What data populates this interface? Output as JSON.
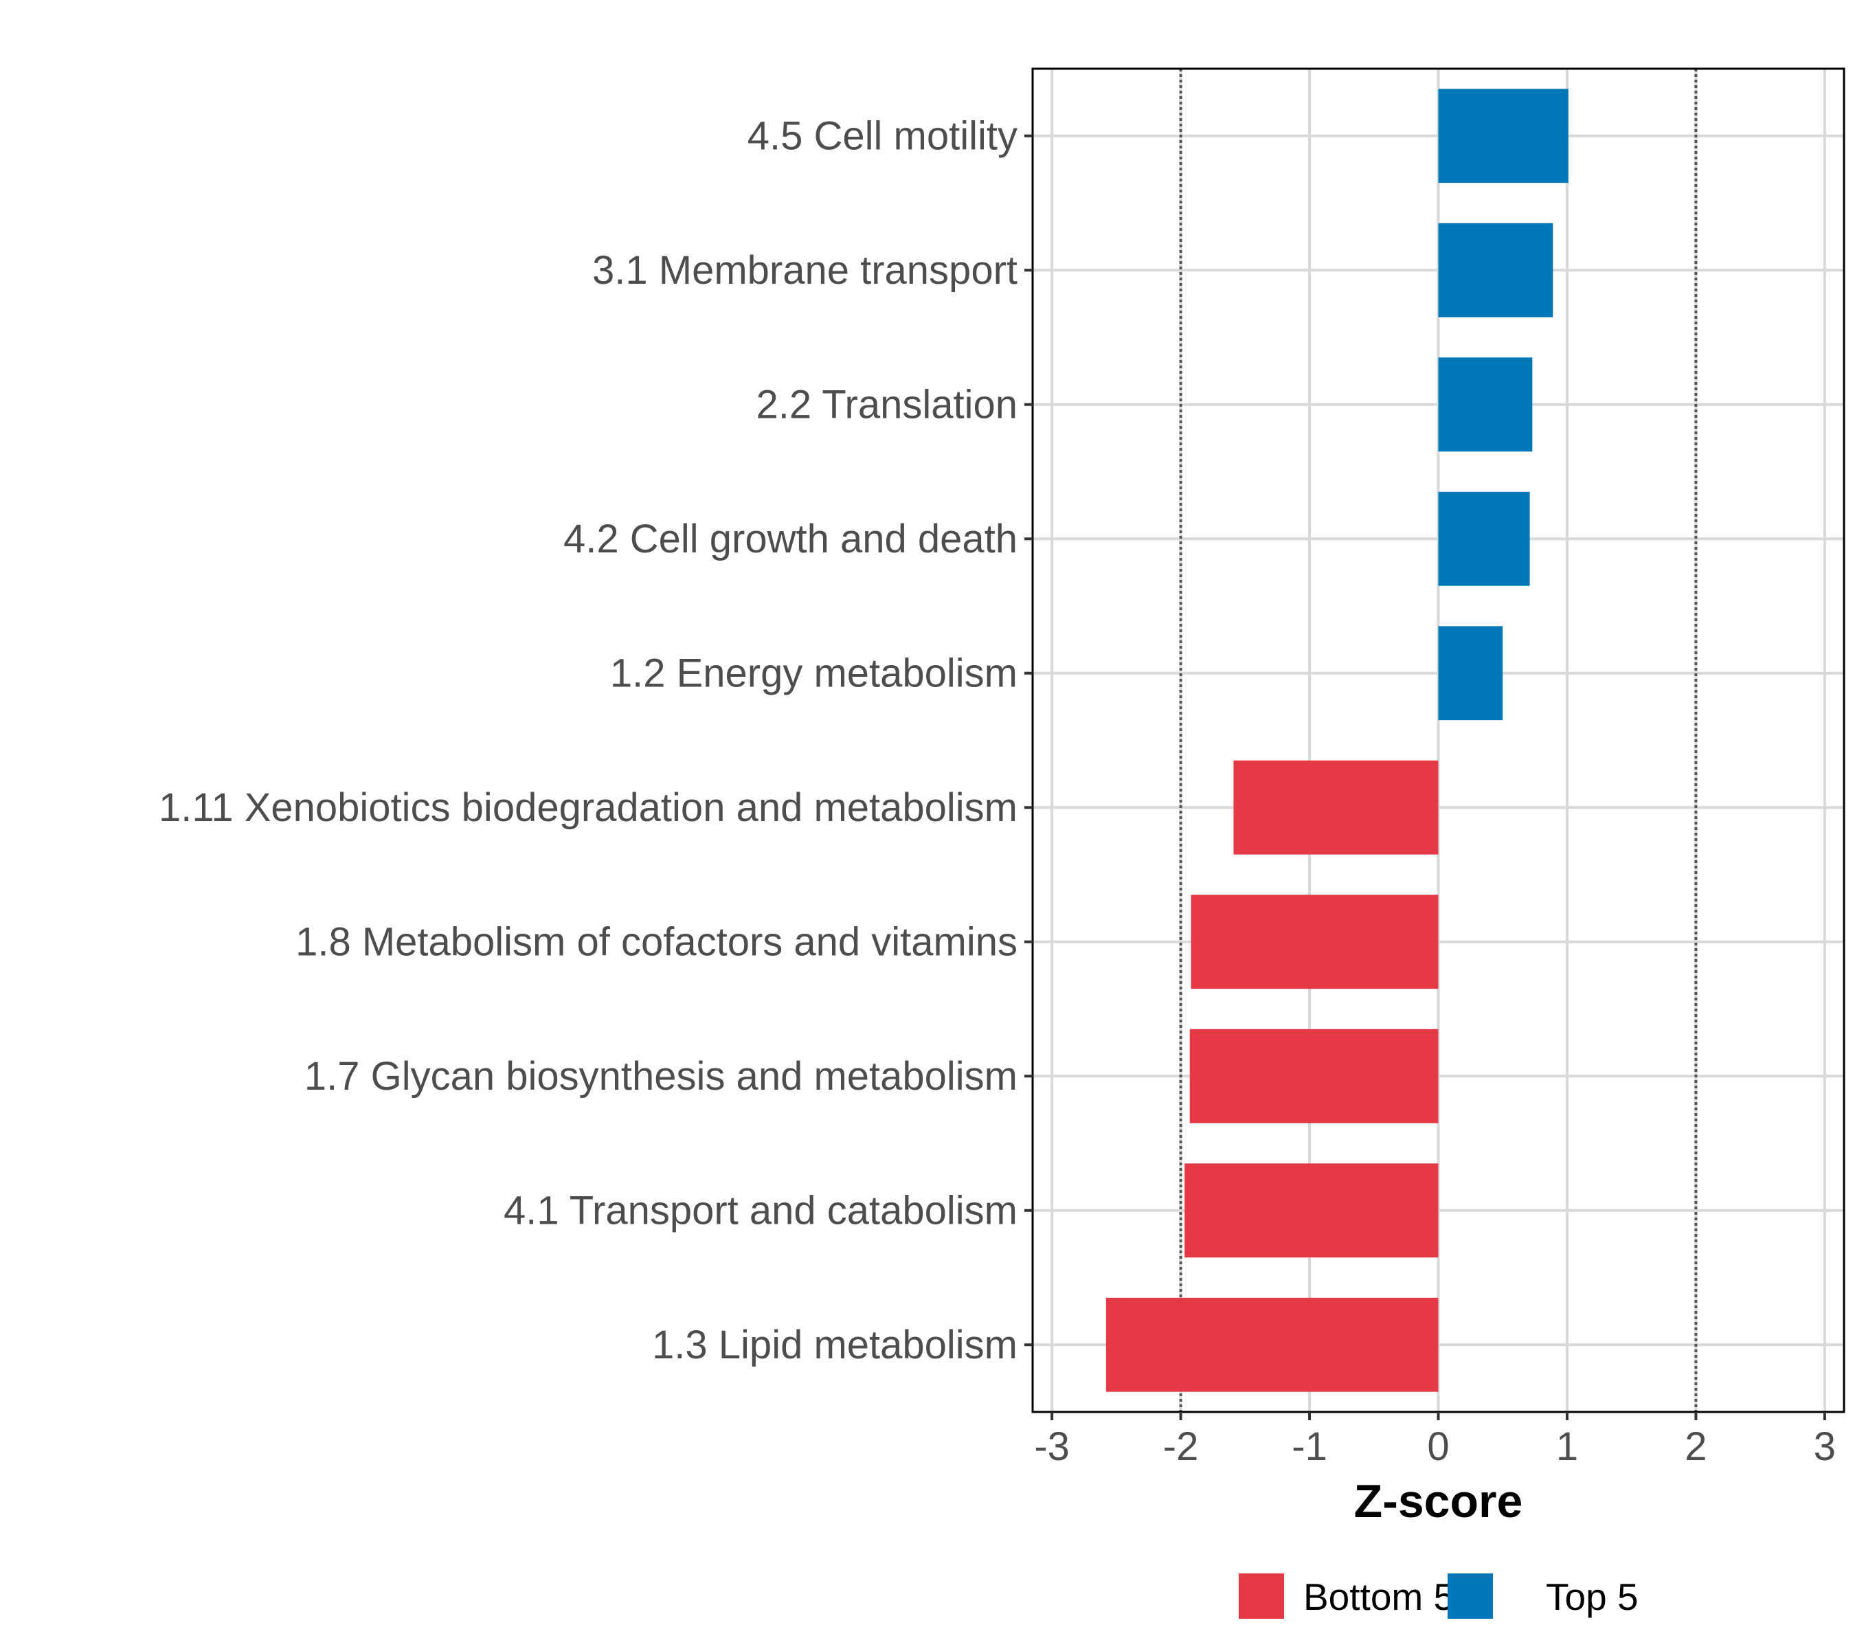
{
  "chart_data": {
    "type": "bar",
    "orientation": "horizontal",
    "title": "",
    "xlabel": "Z-score",
    "ylabel": "",
    "xlim": [
      -3.15,
      3.15
    ],
    "x_ticks": [
      -3,
      -2,
      -1,
      0,
      1,
      2,
      3
    ],
    "x_tick_labels": [
      "-3",
      "-2",
      "-1",
      "0",
      "1",
      "2",
      "3"
    ],
    "reference_lines": [
      -2,
      2
    ],
    "grid": true,
    "categories": [
      "4.5 Cell motility",
      "3.1 Membrane transport",
      "2.2 Translation",
      "4.2 Cell growth and death",
      "1.2 Energy metabolism",
      "1.11 Xenobiotics biodegradation and metabolism",
      "1.8 Metabolism of cofactors and vitamins",
      "1.7 Glycan biosynthesis and metabolism",
      "4.1 Transport and catabolism",
      "1.3 Lipid metabolism"
    ],
    "values": [
      1.01,
      0.89,
      0.73,
      0.71,
      0.5,
      -1.59,
      -1.92,
      -1.93,
      -1.97,
      -2.58
    ],
    "groups": [
      "Top 5",
      "Top 5",
      "Top 5",
      "Top 5",
      "Top 5",
      "Bottom 5",
      "Bottom 5",
      "Bottom 5",
      "Bottom 5",
      "Bottom 5"
    ],
    "legend": [
      {
        "name": "Bottom 5",
        "color": "#E63946"
      },
      {
        "name": "Top 5",
        "color": "#0077B6"
      }
    ],
    "legend_position": "bottom"
  }
}
